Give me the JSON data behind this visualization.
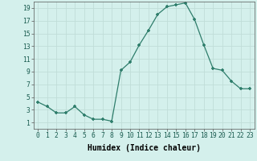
{
  "x": [
    0,
    1,
    2,
    3,
    4,
    5,
    6,
    7,
    8,
    9,
    10,
    11,
    12,
    13,
    14,
    15,
    16,
    17,
    18,
    19,
    20,
    21,
    22,
    23
  ],
  "y": [
    4.2,
    3.5,
    2.5,
    2.5,
    3.5,
    2.2,
    1.5,
    1.5,
    1.2,
    9.2,
    10.5,
    13.2,
    15.5,
    18.0,
    19.2,
    19.5,
    19.8,
    17.2,
    13.2,
    9.5,
    9.2,
    7.5,
    6.3,
    6.3
  ],
  "xlabel": "Humidex (Indice chaleur)",
  "xlim": [
    -0.5,
    23.5
  ],
  "ylim": [
    0,
    20
  ],
  "yticks": [
    1,
    3,
    5,
    7,
    9,
    11,
    13,
    15,
    17,
    19
  ],
  "xticks": [
    0,
    1,
    2,
    3,
    4,
    5,
    6,
    7,
    8,
    9,
    10,
    11,
    12,
    13,
    14,
    15,
    16,
    17,
    18,
    19,
    20,
    21,
    22,
    23
  ],
  "line_color": "#2e7d6b",
  "marker_color": "#2e7d6b",
  "bg_color": "#d4f0ec",
  "grid_color": "#c0ddd8",
  "tick_label_fontsize": 5.8,
  "xlabel_fontsize": 7.0
}
